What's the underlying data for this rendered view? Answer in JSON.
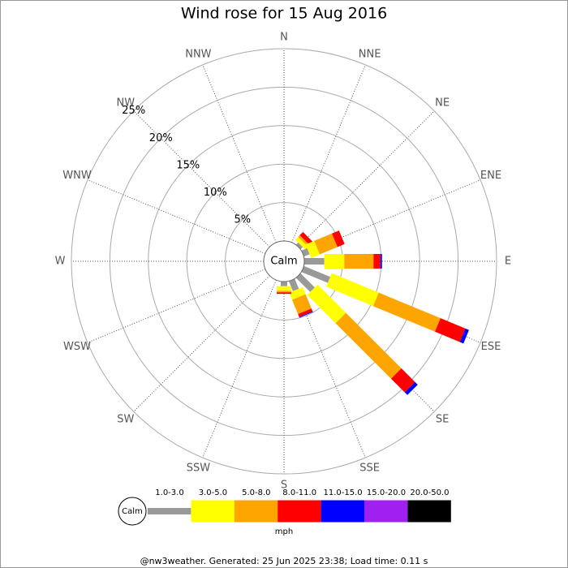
{
  "chart_data": {
    "type": "wind_rose",
    "title": "Wind rose for 15 Aug 2016",
    "directions": [
      "N",
      "NNE",
      "NE",
      "ENE",
      "E",
      "ESE",
      "SE",
      "SSE",
      "S",
      "SSW",
      "SW",
      "WSW",
      "W",
      "WNW",
      "NW",
      "NNW"
    ],
    "calm_label": "Calm",
    "rlim": [
      0,
      25
    ],
    "rticks": [
      {
        "value": 5,
        "label": "5%"
      },
      {
        "value": 10,
        "label": "10%"
      },
      {
        "value": 15,
        "label": "15%"
      },
      {
        "value": 20,
        "label": "20%"
      },
      {
        "value": 25,
        "label": "25%"
      }
    ],
    "legend_title": "mph",
    "series": [
      {
        "name": "1.0-3.0",
        "color": "#999999",
        "values": [
          0,
          0,
          0.4,
          0.8,
          2.6,
          3.7,
          2.6,
          1.4,
          0.6,
          0,
          0,
          0,
          0,
          0,
          0,
          0
        ]
      },
      {
        "name": "3.0-5.0",
        "color": "#ffff00",
        "values": [
          0,
          0,
          0.5,
          1.2,
          2.6,
          6.6,
          5.2,
          1.0,
          0.6,
          0,
          0,
          0,
          0,
          0,
          0,
          0
        ]
      },
      {
        "name": "5.0-8.0",
        "color": "#ffa500",
        "values": [
          0,
          0,
          0.3,
          2.5,
          3.8,
          8.7,
          10.2,
          2.0,
          0.2,
          0,
          0,
          0,
          0,
          0,
          0,
          0
        ]
      },
      {
        "name": "8.0-11.0",
        "color": "#ff0000",
        "values": [
          0,
          0,
          0.6,
          1.0,
          0.9,
          3.5,
          2.5,
          0.4,
          0.2,
          0,
          0,
          0,
          0,
          0,
          0,
          0
        ]
      },
      {
        "name": "11.0-15.0",
        "color": "#0000ff",
        "values": [
          0,
          0,
          0,
          0,
          0.2,
          0.5,
          0.5,
          0.1,
          0,
          0,
          0,
          0,
          0,
          0,
          0,
          0
        ]
      },
      {
        "name": "15.0-20.0",
        "color": "#a020f0",
        "values": [
          0,
          0,
          0,
          0,
          0,
          0,
          0,
          0,
          0,
          0,
          0,
          0,
          0,
          0,
          0,
          0
        ]
      },
      {
        "name": "20.0-50.0",
        "color": "#000000",
        "values": [
          0,
          0,
          0,
          0,
          0,
          0,
          0,
          0,
          0,
          0,
          0,
          0,
          0,
          0,
          0,
          0
        ]
      }
    ],
    "footer": "@nw3weather. Generated: 25 Jun 2025 23:38; Load time: 0.11 s"
  }
}
